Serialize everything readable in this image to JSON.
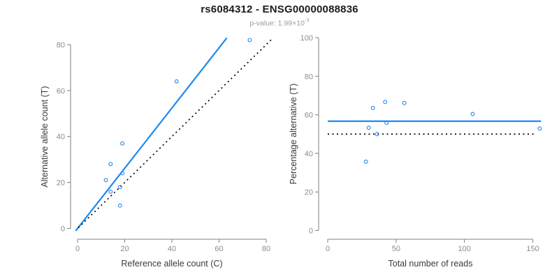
{
  "header": {
    "title": "rs6084312 - ENSG00000088836",
    "pvalue_prefix": "p-value: 1.99×10",
    "pvalue_exponent": "-3"
  },
  "colors": {
    "accent_blue": "#1e88f2",
    "reference_black": "#000000",
    "axis_gray": "#808080",
    "tick_label_gray": "#8c8c8c",
    "axis_title_dark": "#3a3a3a"
  },
  "chart_data": [
    {
      "type": "scatter",
      "title": "rs6084312 - ENSG00000088836",
      "subtitle": "p-value: 1.99×10^-3",
      "xlabel": "Reference allele count (C)",
      "ylabel": "Alternative allele count (T)",
      "xlim": [
        0,
        80
      ],
      "ylim": [
        0,
        80
      ],
      "xticks": [
        0,
        20,
        40,
        60,
        80
      ],
      "yticks": [
        0,
        20,
        40,
        60,
        80
      ],
      "grid": false,
      "points": [
        [
          12,
          21
        ],
        [
          14,
          16
        ],
        [
          14,
          28
        ],
        [
          18,
          10
        ],
        [
          18,
          18
        ],
        [
          19,
          24
        ],
        [
          19,
          37
        ],
        [
          42,
          64
        ],
        [
          73,
          82
        ]
      ],
      "lines": [
        {
          "name": "regression-line",
          "style": "solid",
          "color_key": "accent_blue",
          "slope": 1.31,
          "intercept": 0,
          "x_from": -0.8,
          "x_to": 63.3
        },
        {
          "name": "identity-line",
          "style": "dotted",
          "color_key": "reference_black",
          "slope": 1,
          "intercept": 0,
          "x_from": 0.3,
          "x_to": 82.3
        }
      ]
    },
    {
      "type": "scatter",
      "xlabel": "Total number of reads",
      "ylabel": "Percentage alternative (T)",
      "xlim": [
        0,
        155
      ],
      "ylim": [
        0,
        100
      ],
      "xticks": [
        0,
        50,
        100,
        150
      ],
      "yticks": [
        0,
        20,
        40,
        60,
        80,
        100
      ],
      "grid": false,
      "points": [
        [
          28,
          35.7
        ],
        [
          30,
          53.3
        ],
        [
          33,
          63.6
        ],
        [
          36,
          50.0
        ],
        [
          42,
          66.7
        ],
        [
          43,
          55.8
        ],
        [
          56,
          66.1
        ],
        [
          106,
          60.4
        ],
        [
          155,
          52.9
        ]
      ],
      "lines": [
        {
          "name": "mean-percentage-line",
          "style": "solid",
          "color_key": "accent_blue",
          "slope": 0,
          "intercept": 56.7,
          "x_from": 0,
          "x_to": 156
        },
        {
          "name": "fifty-percent-line",
          "style": "dotted",
          "color_key": "reference_black",
          "slope": 0,
          "intercept": 50,
          "x_from": 0,
          "x_to": 152
        }
      ]
    }
  ]
}
